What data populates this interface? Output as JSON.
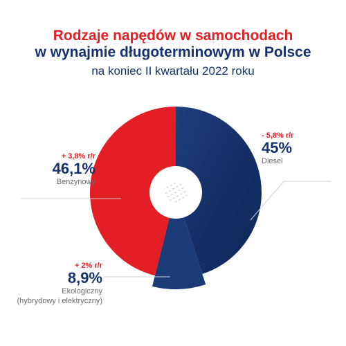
{
  "title_line1": "Rodzaje napędów w samochodach",
  "title_line2": "w wynajmie długoterminowym w Polsce",
  "subtitle": "na koniec II kwartału 2022 roku",
  "colors": {
    "petrol": "#e31e24",
    "diesel": "#17356f",
    "eco": "#1a3a78",
    "text_dark": "#14326e",
    "accent": "#e31e24",
    "grey": "#6b6b6b"
  },
  "chart_data": {
    "type": "pie",
    "title": "Rodzaje napędów w samochodach w wynajmie długoterminowym w Polsce",
    "subtitle": "na koniec II kwartału 2022 roku",
    "slices": [
      {
        "name": "Diesel",
        "value": 45.0,
        "value_label": "45%",
        "change": "- 5,8% r/r",
        "color": "#17356f"
      },
      {
        "name": "Ekologiczny (hybrydowy i elektryczny)",
        "value": 8.9,
        "value_label": "8,9%",
        "change": "+ 2% r/r",
        "color": "#1a3a78"
      },
      {
        "name": "Benzynowy",
        "value": 46.1,
        "value_label": "46,1%",
        "change": "+ 3,8% r/r",
        "color": "#e31e24"
      }
    ]
  },
  "labels": {
    "petrol": {
      "change": "+ 3,8% r/r",
      "value": "46,1%",
      "name": "Benzynowy"
    },
    "diesel": {
      "change": "- 5,8% r/r",
      "value": "45%",
      "name": "Diesel"
    },
    "eco": {
      "change": "+ 2% r/r",
      "value": "8,9%",
      "name_line1": "Ekologiczny",
      "name_line2": "(hybrydowy i elektryczny)"
    }
  }
}
